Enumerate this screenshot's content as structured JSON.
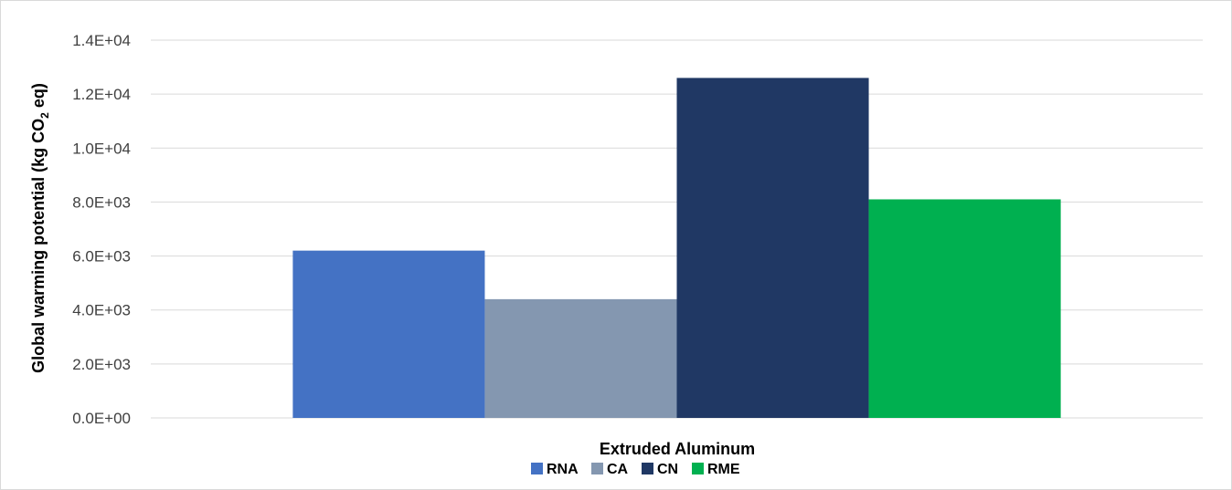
{
  "chart_data": {
    "type": "bar",
    "categories": [
      "Extruded Aluminum"
    ],
    "series": [
      {
        "name": "RNA",
        "values": [
          6200
        ],
        "color": "#4472c4"
      },
      {
        "name": "CA",
        "values": [
          4400
        ],
        "color": "#8497b0"
      },
      {
        "name": "CN",
        "values": [
          12600
        ],
        "color": "#203864"
      },
      {
        "name": "RME",
        "values": [
          8100
        ],
        "color": "#00b050"
      }
    ],
    "title": "",
    "xlabel": "Extruded Aluminum",
    "ylabel": {
      "prefix": "Global warming potential (kg CO",
      "subscript": "2",
      "suffix": " eq)"
    },
    "ylim": [
      0,
      14000
    ],
    "yticks": [
      0,
      2000,
      4000,
      6000,
      8000,
      10000,
      12000,
      14000
    ],
    "ytick_labels": [
      "0.0E+00",
      "2.0E+03",
      "4.0E+03",
      "6.0E+03",
      "8.0E+03",
      "1.0E+04",
      "1.2E+04",
      "1.4E+04"
    ],
    "grid": true,
    "gridline_color": "#d9d9d9",
    "legend_position": "bottom"
  }
}
